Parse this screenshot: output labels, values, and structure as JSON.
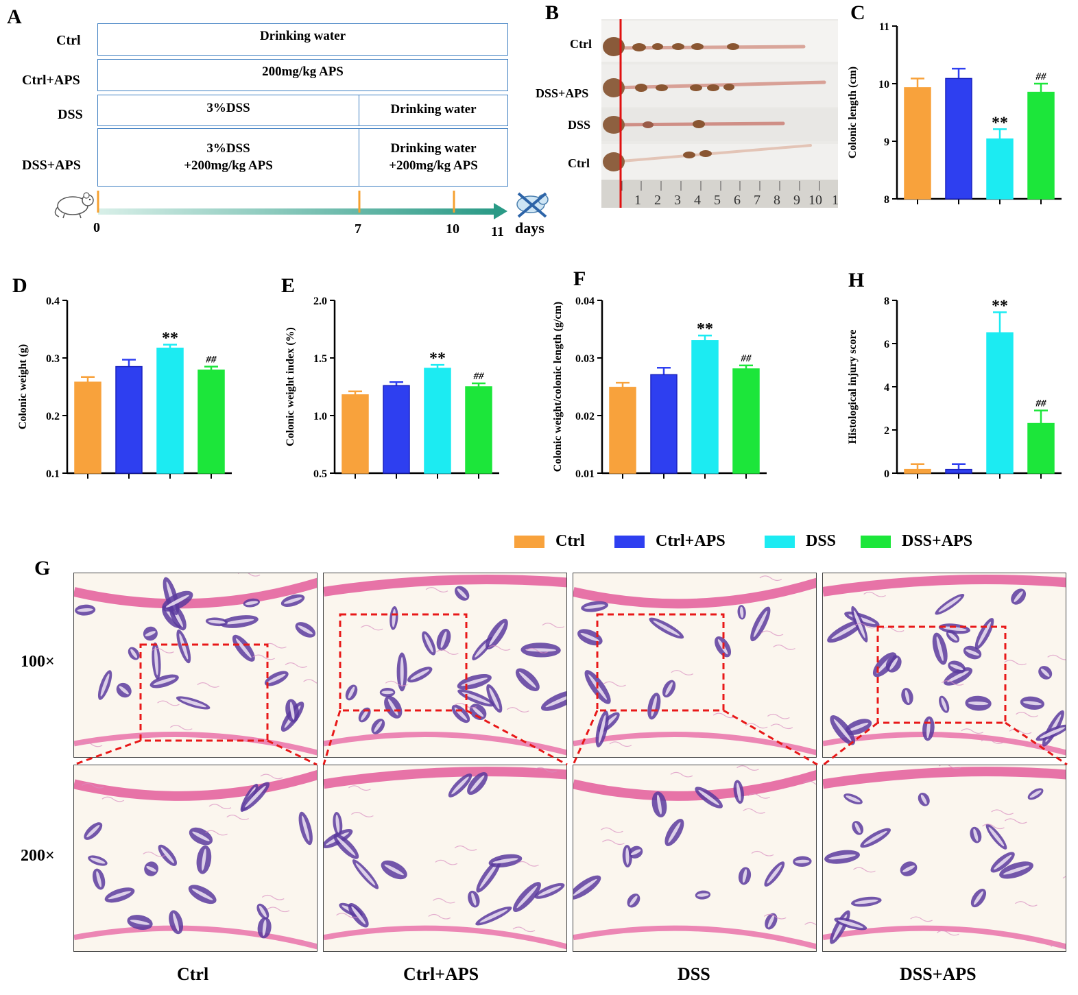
{
  "panel_labels": {
    "A": "A",
    "B": "B",
    "C": "C",
    "D": "D",
    "E": "E",
    "F": "F",
    "H": "H",
    "G": "G"
  },
  "schedule": {
    "rows": [
      "Ctrl",
      "Ctrl+APS",
      "DSS",
      "DSS+APS"
    ],
    "ctrl_box": "Drinking water",
    "ctrlaps_box": "200mg/kg APS",
    "dss_box_1": "3%DSS",
    "dss_box_2": "Drinking water",
    "dssaps_box_1_line1": "3%DSS",
    "dssaps_box_1_line2": "+200mg/kg APS",
    "dssaps_box_2_line1": "Drinking water",
    "dssaps_box_2_line2": "+200mg/kg APS",
    "timeline_ticks": [
      "0",
      "7",
      "10",
      "11"
    ],
    "timeline_unit": "days"
  },
  "photo": {
    "labels": [
      "Ctrl",
      "DSS+APS",
      "DSS",
      "Ctrl"
    ],
    "ruler_numbers": [
      "1",
      "2",
      "3",
      "4",
      "5",
      "6",
      "7",
      "8",
      "9",
      "10",
      "1"
    ]
  },
  "legend": [
    {
      "label": "Ctrl",
      "color": "#F8A23C"
    },
    {
      "label": "Ctrl+APS",
      "color": "#2E3FF0"
    },
    {
      "label": "DSS",
      "color": "#1CEBF2"
    },
    {
      "label": "DSS+APS",
      "color": "#1CE63A"
    }
  ],
  "chart_data": [
    {
      "id": "C",
      "type": "bar",
      "ylabel": "Colonic length (cm)",
      "categories": [
        "Ctrl",
        "Ctrl+APS",
        "DSS",
        "DSS+APS"
      ],
      "values": [
        9.93,
        10.09,
        9.04,
        9.85
      ],
      "errors": [
        0.16,
        0.17,
        0.17,
        0.15
      ],
      "ylim": [
        8,
        11
      ],
      "ticks": [
        "8",
        "9",
        "10",
        "11"
      ],
      "tick_values": [
        8,
        9,
        10,
        11
      ],
      "annotations": [
        "",
        "",
        "**",
        "##"
      ]
    },
    {
      "id": "D",
      "type": "bar",
      "ylabel": "Colonic weight (g)",
      "categories": [
        "Ctrl",
        "Ctrl+APS",
        "DSS",
        "DSS+APS"
      ],
      "values": [
        0.258,
        0.285,
        0.317,
        0.279
      ],
      "errors": [
        0.009,
        0.012,
        0.006,
        0.006
      ],
      "ylim": [
        0.1,
        0.4
      ],
      "ticks": [
        "0.1",
        "0.2",
        "0.3",
        "0.4"
      ],
      "tick_values": [
        0.1,
        0.2,
        0.3,
        0.4
      ],
      "annotations": [
        "",
        "",
        "**",
        "##"
      ]
    },
    {
      "id": "E",
      "type": "bar",
      "ylabel": "Colonic weight index (%)",
      "categories": [
        "Ctrl",
        "Ctrl+APS",
        "DSS",
        "DSS+APS"
      ],
      "values": [
        1.18,
        1.26,
        1.41,
        1.25
      ],
      "errors": [
        0.03,
        0.03,
        0.03,
        0.03
      ],
      "ylim": [
        0.5,
        2.0
      ],
      "ticks": [
        "0.5",
        "1.0",
        "1.5",
        "2.0"
      ],
      "tick_values": [
        0.5,
        1.0,
        1.5,
        2.0
      ],
      "annotations": [
        "",
        "",
        "**",
        "##"
      ]
    },
    {
      "id": "F",
      "type": "bar",
      "ylabel": "Colonic weight/colonic length (g/cm)",
      "categories": [
        "Ctrl",
        "Ctrl+APS",
        "DSS",
        "DSS+APS"
      ],
      "values": [
        0.0249,
        0.0271,
        0.033,
        0.0281
      ],
      "errors": [
        0.0008,
        0.0012,
        0.0009,
        0.0006
      ],
      "ylim": [
        0.01,
        0.04
      ],
      "ticks": [
        "0.01",
        "0.02",
        "0.03",
        "0.04"
      ],
      "tick_values": [
        0.01,
        0.02,
        0.03,
        0.04
      ],
      "annotations": [
        "",
        "",
        "**",
        "##"
      ]
    },
    {
      "id": "H",
      "type": "bar",
      "ylabel": "Histological injury score",
      "categories": [
        "Ctrl",
        "Ctrl+APS",
        "DSS",
        "DSS+APS"
      ],
      "values": [
        0.17,
        0.17,
        6.5,
        2.3
      ],
      "errors": [
        0.25,
        0.25,
        0.95,
        0.6
      ],
      "ylim": [
        0,
        8
      ],
      "ticks": [
        "0",
        "2",
        "4",
        "6",
        "8"
      ],
      "tick_values": [
        0,
        2,
        4,
        6,
        8
      ],
      "annotations": [
        "",
        "",
        "**",
        "##"
      ]
    }
  ],
  "histology": {
    "row_labels": [
      "100×",
      "200×"
    ],
    "column_labels": [
      "Ctrl",
      "Ctrl+APS",
      "DSS",
      "DSS+APS"
    ]
  }
}
